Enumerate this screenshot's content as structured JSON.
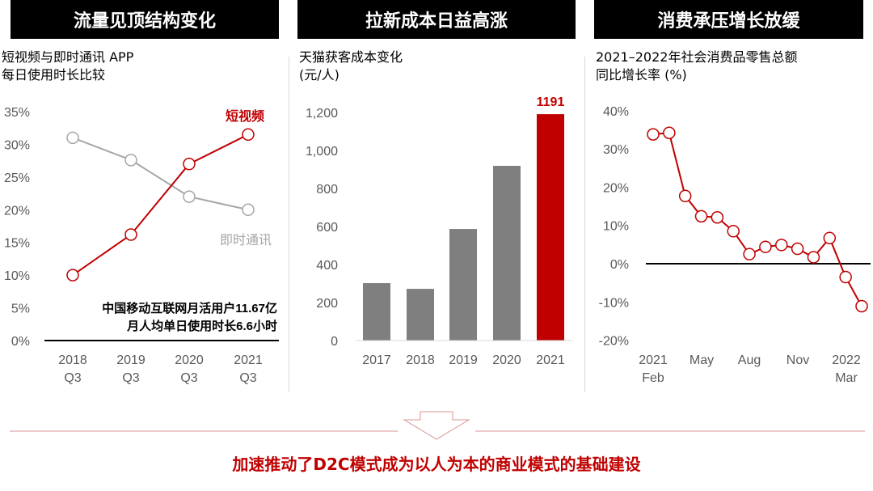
{
  "panels": [
    {
      "header": "流量见顶结构变化",
      "subtitle_lines": [
        "短视频与即时通讯 APP",
        "每日使用时长比较"
      ]
    },
    {
      "header": "拉新成本日益高涨",
      "subtitle_lines": [
        "天猫获客成本变化",
        "(元/人)"
      ]
    },
    {
      "header": "消费承压增长放缓",
      "subtitle_lines": [
        "2021–2022年社会消费品零售总额",
        "同比增长率 (%)"
      ]
    }
  ],
  "conclusion": "加速推动了D2C模式成为以人为本的商业模式的基础建设",
  "colors": {
    "red": "#c00000",
    "gray": "#a6a6a6",
    "bar_gray": "#7f7f7f"
  },
  "chart_data": [
    {
      "type": "line",
      "categories": [
        [
          "2018",
          "Q3"
        ],
        [
          "2019",
          "Q3"
        ],
        [
          "2020",
          "Q3"
        ],
        [
          "2021",
          "Q3"
        ]
      ],
      "ylim": [
        0,
        35
      ],
      "yticks": [
        "0%",
        "5%",
        "10%",
        "15%",
        "20%",
        "25%",
        "30%",
        "35%"
      ],
      "series": [
        {
          "name": "短视频",
          "values": [
            10,
            16.2,
            27,
            31.5
          ]
        },
        {
          "name": "即时通讯",
          "values": [
            31,
            27.6,
            22,
            20
          ]
        }
      ],
      "annotation": [
        "中国移动互联网月活用户11.67亿",
        "月人均单日使用时长6.6小时"
      ]
    },
    {
      "type": "bar",
      "categories": [
        "2017",
        "2018",
        "2019",
        "2020",
        "2021"
      ],
      "values": [
        302,
        272,
        587,
        919,
        1191
      ],
      "ylim": [
        0,
        1200
      ],
      "yticks": [
        "0",
        "200",
        "400",
        "600",
        "800",
        "1,000",
        "1,200"
      ],
      "data_labels": [
        "",
        "",
        "",
        "",
        "1191"
      ]
    },
    {
      "type": "line",
      "x": [
        "2021-02",
        "2021-03",
        "2021-04",
        "2021-05",
        "2021-06",
        "2021-07",
        "2021-08",
        "2021-09",
        "2021-10",
        "2021-11",
        "2021-12",
        "2022-01/02",
        "2022-03",
        "2022-04"
      ],
      "values": [
        33.8,
        34.2,
        17.7,
        12.4,
        12.1,
        8.5,
        2.5,
        4.4,
        4.9,
        3.9,
        1.7,
        6.7,
        -3.5,
        -11.1
      ],
      "ylim": [
        -20,
        40
      ],
      "yticks": [
        "-20%",
        "-10%",
        "0%",
        "10%",
        "20%",
        "30%",
        "40%"
      ],
      "xticklabels": [
        [
          "2021",
          "Feb"
        ],
        [
          "May"
        ],
        [
          "Aug"
        ],
        [
          "Nov"
        ],
        [
          "2022",
          "Mar"
        ]
      ]
    }
  ]
}
